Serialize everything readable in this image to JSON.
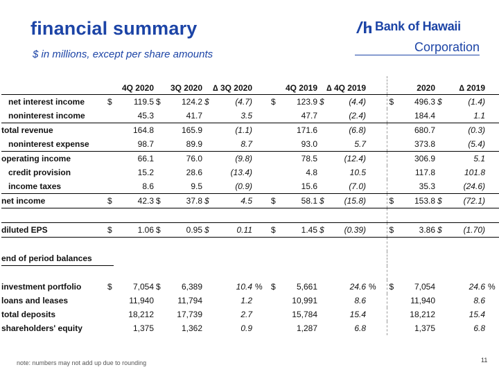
{
  "header": {
    "title": "financial summary",
    "subtitle": "$ in millions, except per share amounts"
  },
  "logo": {
    "name": "Bank of Hawaii",
    "corp": "Corporation",
    "brand_color": "#1c44a6"
  },
  "table": {
    "columns": [
      "4Q 2020",
      "3Q 2020",
      "∆ 3Q 2020",
      "4Q 2019",
      "∆ 4Q 2019",
      "2020",
      "∆ 2019"
    ],
    "rows": [
      {
        "label": "net interest income",
        "c1": "119.5",
        "c2": "124.2",
        "d1": "(4.7)",
        "c3": "123.9",
        "d2": "(4.4)",
        "c4": "496.3",
        "d3": "(1.4)"
      },
      {
        "label": "noninterest income",
        "c1": "45.3",
        "c2": "41.7",
        "d1": "3.5",
        "c3": "47.7",
        "d2": "(2.4)",
        "c4": "184.4",
        "d3": "1.1"
      },
      {
        "label": "total revenue",
        "c1": "164.8",
        "c2": "165.9",
        "d1": "(1.1)",
        "c3": "171.6",
        "d2": "(6.8)",
        "c4": "680.7",
        "d3": "(0.3)"
      },
      {
        "label": "noninterest expense",
        "c1": "98.7",
        "c2": "89.9",
        "d1": "8.7",
        "c3": "93.0",
        "d2": "5.7",
        "c4": "373.8",
        "d3": "(5.4)"
      },
      {
        "label": "operating income",
        "c1": "66.1",
        "c2": "76.0",
        "d1": "(9.8)",
        "c3": "78.5",
        "d2": "(12.4)",
        "c4": "306.9",
        "d3": "5.1"
      },
      {
        "label": "credit provision",
        "c1": "15.2",
        "c2": "28.6",
        "d1": "(13.4)",
        "c3": "4.8",
        "d2": "10.5",
        "c4": "117.8",
        "d3": "101.8"
      },
      {
        "label": "income taxes",
        "c1": "8.6",
        "c2": "9.5",
        "d1": "(0.9)",
        "c3": "15.6",
        "d2": "(7.0)",
        "c4": "35.3",
        "d3": "(24.6)"
      },
      {
        "label": "net income",
        "c1": "42.3",
        "c2": "37.8",
        "d1": "4.5",
        "c3": "58.1",
        "d2": "(15.8)",
        "c4": "153.8",
        "d3": "(72.1)"
      },
      {
        "label": "diluted EPS",
        "c1": "1.06",
        "c2": "0.95",
        "d1": "0.11",
        "c3": "1.45",
        "d2": "(0.39)",
        "c4": "3.86",
        "d3": "(1.70)"
      },
      {
        "label": "end of period balances"
      },
      {
        "label": "investment portfolio",
        "c1": "7,054",
        "c2": "6,389",
        "d1": "10.4",
        "c3": "5,661",
        "d2": "24.6",
        "c4": "7,054",
        "d3": "24.6"
      },
      {
        "label": "loans and leases",
        "c1": "11,940",
        "c2": "11,794",
        "d1": "1.2",
        "c3": "10,991",
        "d2": "8.6",
        "c4": "11,940",
        "d3": "8.6"
      },
      {
        "label": "total deposits",
        "c1": "18,212",
        "c2": "17,739",
        "d1": "2.7",
        "c3": "15,784",
        "d2": "15.4",
        "c4": "18,212",
        "d3": "15.4"
      },
      {
        "label": "shareholders' equity",
        "c1": "1,375",
        "c2": "1,362",
        "d1": "0.9",
        "c3": "1,287",
        "d2": "6.8",
        "c4": "1,375",
        "d3": "6.8"
      }
    ],
    "currency_symbol": "$",
    "percent_symbol": "%"
  },
  "footer": {
    "note": "note:  numbers may not add up due to rounding",
    "page_number": "11"
  }
}
